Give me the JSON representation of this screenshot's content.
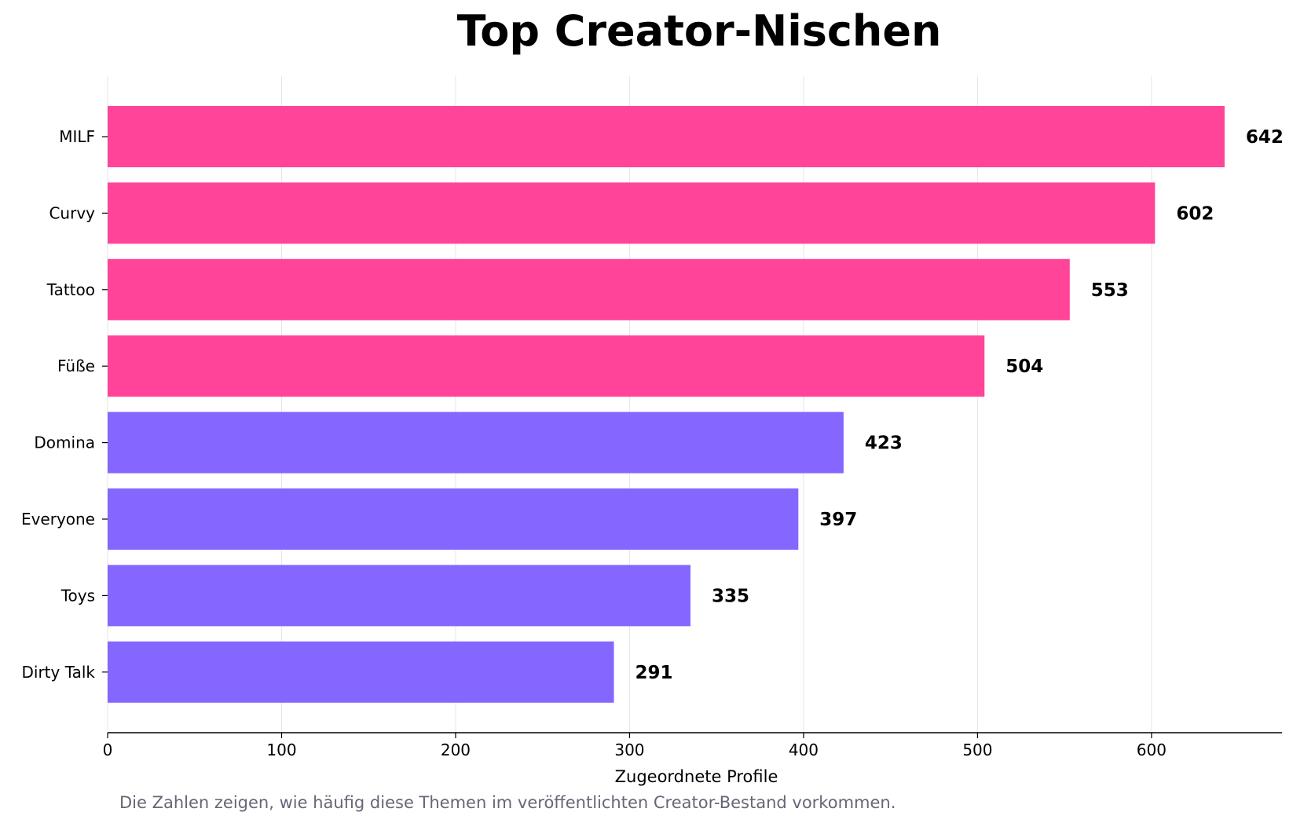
{
  "chart_data": {
    "type": "bar",
    "orientation": "horizontal",
    "title": "Top Creator-Nischen",
    "xlabel": "Zugeordnete Profile",
    "ylabel": "",
    "categories": [
      "MILF",
      "Curvy",
      "Tattoo",
      "Füße",
      "Domina",
      "Everyone",
      "Toys",
      "Dirty Talk"
    ],
    "values": [
      642,
      602,
      553,
      504,
      423,
      397,
      335,
      291
    ],
    "bar_colors": [
      "#ff4499",
      "#ff4499",
      "#ff4499",
      "#ff4499",
      "#8566ff",
      "#8566ff",
      "#8566ff",
      "#8566ff"
    ],
    "xlim": [
      0,
      675
    ],
    "xticks": [
      0,
      100,
      200,
      300,
      400,
      500,
      600
    ],
    "grid": "vertical",
    "legend": "none"
  },
  "caption": "Die Zahlen zeigen, wie häufig diese Themen im veröffentlichten Creator-Bestand vorkommen."
}
